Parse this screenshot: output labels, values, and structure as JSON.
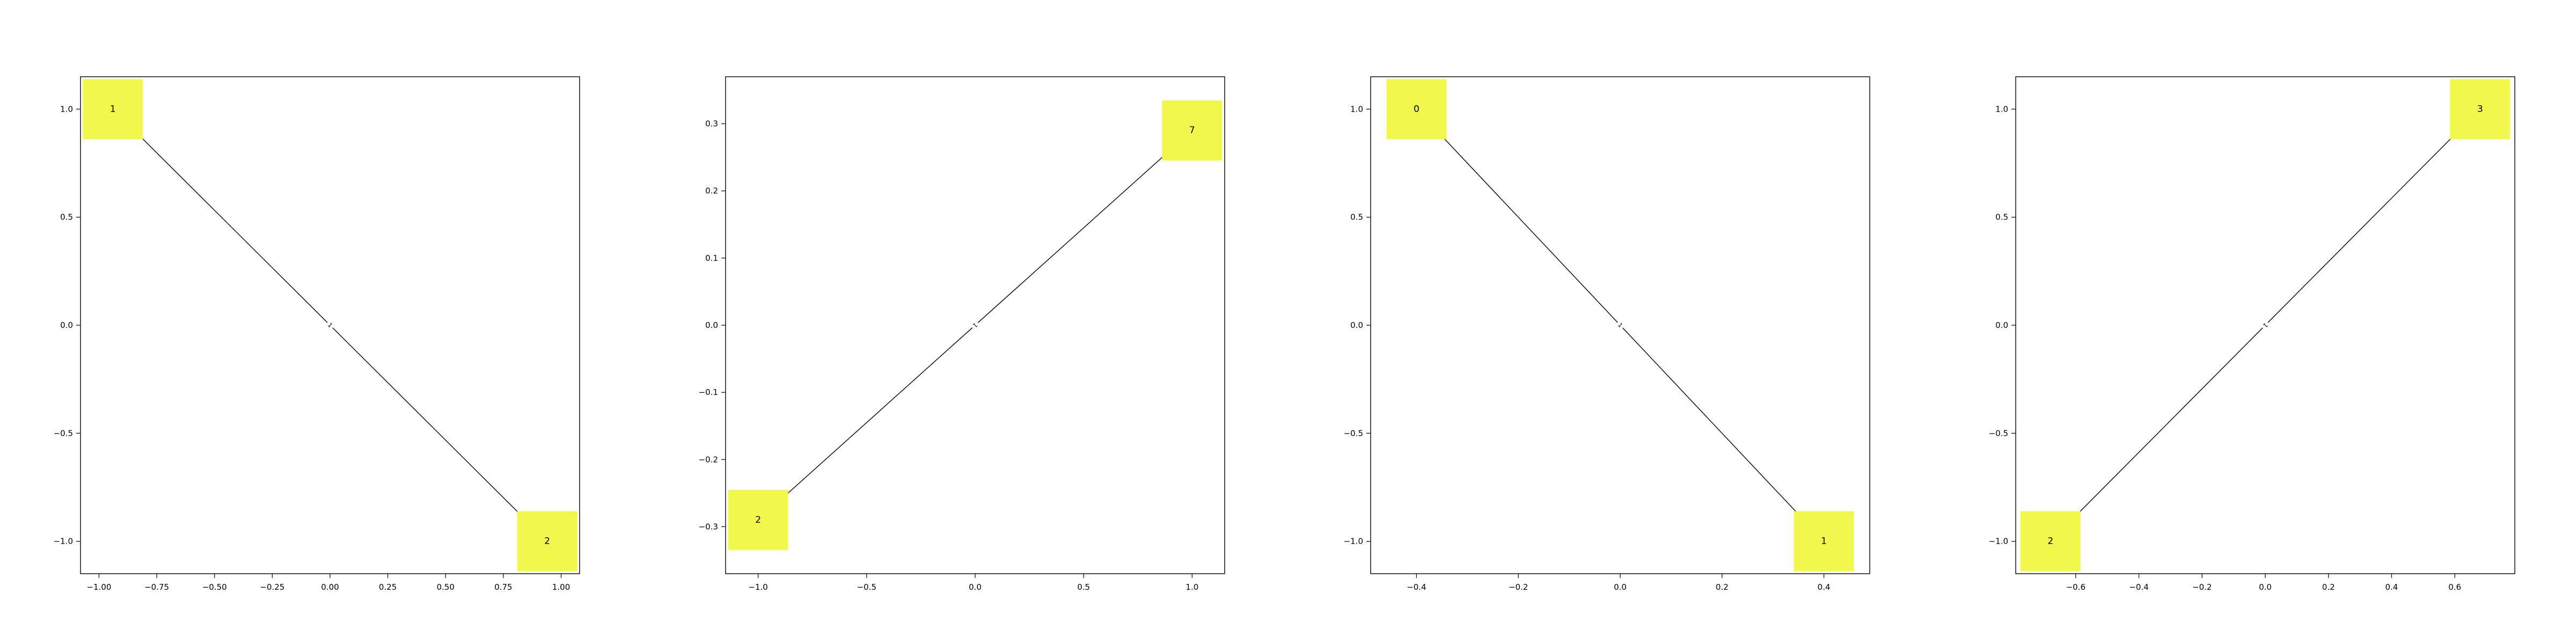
{
  "chart_data": [
    {
      "type": "network",
      "nodes": [
        {
          "label": "1",
          "x": -0.94,
          "y": 1.0
        },
        {
          "label": "2",
          "x": 0.94,
          "y": -1.0
        }
      ],
      "edges": [
        {
          "from": 0,
          "to": 1,
          "label": "1"
        }
      ],
      "xlim": [
        -1.08,
        1.08
      ],
      "ylim": [
        -1.15,
        1.15
      ],
      "xticks": [
        -1.0,
        -0.75,
        -0.5,
        -0.25,
        0.0,
        0.25,
        0.5,
        0.75,
        1.0
      ],
      "xtick_labels": [
        "−1.00",
        "−0.75",
        "−0.50",
        "−0.25",
        "0.00",
        "0.25",
        "0.50",
        "0.75",
        "1.00"
      ],
      "yticks": [
        1.0,
        0.5,
        0.0,
        -0.5,
        -1.0
      ],
      "ytick_labels": [
        "1.0",
        "0.5",
        "0.0",
        "−0.5",
        "−1.0"
      ],
      "node_color": "#f2f74c",
      "edge_color": "#000000"
    },
    {
      "type": "network",
      "nodes": [
        {
          "label": "7",
          "x": 1.0,
          "y": 0.29
        },
        {
          "label": "2",
          "x": -1.0,
          "y": -0.29
        }
      ],
      "edges": [
        {
          "from": 0,
          "to": 1,
          "label": "1"
        }
      ],
      "xlim": [
        -1.15,
        1.15
      ],
      "ylim": [
        -0.37,
        0.37
      ],
      "xticks": [
        -1.0,
        -0.5,
        0.0,
        0.5,
        1.0
      ],
      "xtick_labels": [
        "−1.0",
        "−0.5",
        "0.0",
        "0.5",
        "1.0"
      ],
      "yticks": [
        0.3,
        0.2,
        0.1,
        0.0,
        -0.1,
        -0.2,
        -0.3
      ],
      "ytick_labels": [
        "0.3",
        "0.2",
        "0.1",
        "0.0",
        "−0.1",
        "−0.2",
        "−0.3"
      ],
      "node_color": "#f2f74c",
      "edge_color": "#000000"
    },
    {
      "type": "network",
      "nodes": [
        {
          "label": "0",
          "x": -0.4,
          "y": 1.0
        },
        {
          "label": "1",
          "x": 0.4,
          "y": -1.0
        }
      ],
      "edges": [
        {
          "from": 0,
          "to": 1,
          "label": "1"
        }
      ],
      "xlim": [
        -0.49,
        0.49
      ],
      "ylim": [
        -1.15,
        1.15
      ],
      "xticks": [
        -0.4,
        -0.2,
        0.0,
        0.2,
        0.4
      ],
      "xtick_labels": [
        "−0.4",
        "−0.2",
        "0.0",
        "0.2",
        "0.4"
      ],
      "yticks": [
        1.0,
        0.5,
        0.0,
        -0.5,
        -1.0
      ],
      "ytick_labels": [
        "1.0",
        "0.5",
        "0.0",
        "−0.5",
        "−1.0"
      ],
      "node_color": "#f2f74c",
      "edge_color": "#000000"
    },
    {
      "type": "network",
      "nodes": [
        {
          "label": "3",
          "x": 0.68,
          "y": 1.0
        },
        {
          "label": "2",
          "x": -0.68,
          "y": -1.0
        }
      ],
      "edges": [
        {
          "from": 0,
          "to": 1,
          "label": "1"
        }
      ],
      "xlim": [
        -0.79,
        0.79
      ],
      "ylim": [
        -1.15,
        1.15
      ],
      "xticks": [
        -0.6,
        -0.4,
        -0.2,
        0.0,
        0.2,
        0.4,
        0.6
      ],
      "xtick_labels": [
        "−0.6",
        "−0.4",
        "−0.2",
        "0.0",
        "0.2",
        "0.4",
        "0.6"
      ],
      "yticks": [
        1.0,
        0.5,
        0.0,
        -0.5,
        -1.0
      ],
      "ytick_labels": [
        "1.0",
        "0.5",
        "0.0",
        "−0.5",
        "−1.0"
      ],
      "node_color": "#f2f74c",
      "edge_color": "#000000"
    }
  ]
}
